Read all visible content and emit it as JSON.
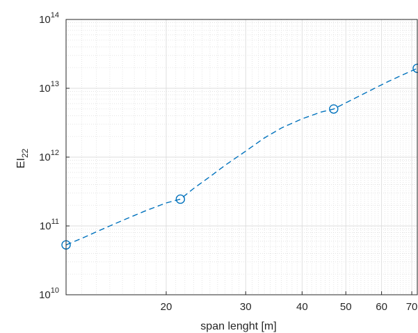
{
  "chart_data": {
    "type": "line",
    "xscale": "log",
    "yscale": "log",
    "xlabel": "span lenght [m]",
    "ylabel": "EI",
    "ylabel_subscript": "22",
    "xlim": [
      12,
      72
    ],
    "ylim": [
      10000000000.0,
      100000000000000.0
    ],
    "x_ticks": [
      {
        "value": 20,
        "label": "20"
      },
      {
        "value": 30,
        "label": "30"
      },
      {
        "value": 40,
        "label": "40"
      },
      {
        "value": 50,
        "label": "50"
      },
      {
        "value": 60,
        "label": "60"
      },
      {
        "value": 70,
        "label": "70"
      }
    ],
    "y_ticks": [
      {
        "value": 10000000000.0,
        "base": "10",
        "exp": "10"
      },
      {
        "value": 100000000000.0,
        "base": "10",
        "exp": "11"
      },
      {
        "value": 1000000000000.0,
        "base": "10",
        "exp": "12"
      },
      {
        "value": 10000000000000.0,
        "base": "10",
        "exp": "13"
      },
      {
        "value": 100000000000000.0,
        "base": "10",
        "exp": "14"
      }
    ],
    "grid": true,
    "minor_grid": true,
    "line_color": "#0072BD",
    "line_style": "dashed",
    "series": [
      {
        "x": [
          12,
          21.5,
          47,
          72
        ],
        "y": [
          53000000000.0,
          245000000000.0,
          5000000000000.0,
          19500000000000.0
        ],
        "curve_x": [
          12,
          13,
          14,
          15,
          16,
          17,
          18,
          19,
          20,
          21.5,
          23,
          25,
          27,
          30,
          33,
          36,
          40,
          44,
          47,
          52,
          57,
          62,
          67,
          72
        ],
        "curve_y": [
          53000000000.0,
          66000000000.0,
          82000000000.0,
          100000000000.0,
          120000000000.0,
          142000000000.0,
          166000000000.0,
          190000000000.0,
          216000000000.0,
          245000000000.0,
          350000000000.0,
          520000000000.0,
          760000000000.0,
          1220000000000.0,
          1900000000000.0,
          2650000000000.0,
          3600000000000.0,
          4500000000000.0,
          5000000000000.0,
          7000000000000.0,
          9500000000000.0,
          12500000000000.0,
          15800000000000.0,
          19500000000000.0
        ]
      }
    ]
  }
}
